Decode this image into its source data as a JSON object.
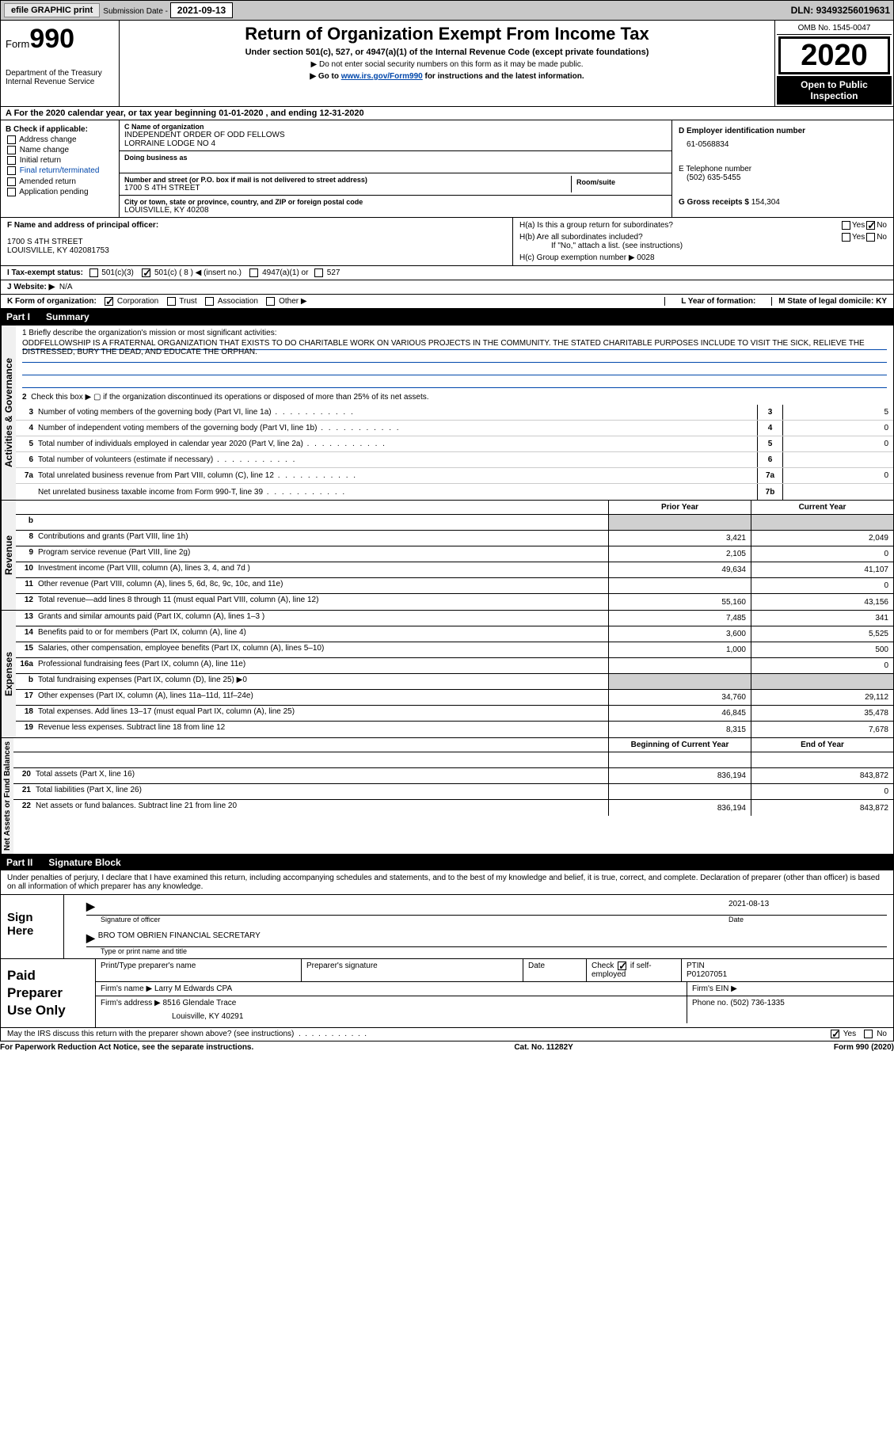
{
  "topbar": {
    "efile": "efile GRAPHIC print",
    "sub_label": "Submission Date - ",
    "sub_date": "2021-09-13",
    "dln_label": "DLN: ",
    "dln": "93493256019631"
  },
  "header": {
    "form_prefix": "Form",
    "form_num": "990",
    "dept": "Department of the Treasury",
    "irs": "Internal Revenue Service",
    "title": "Return of Organization Exempt From Income Tax",
    "subtitle": "Under section 501(c), 527, or 4947(a)(1) of the Internal Revenue Code (except private foundations)",
    "note1": "▶ Do not enter social security numbers on this form as it may be made public.",
    "note2_a": "▶ Go to ",
    "note2_link": "www.irs.gov/Form990",
    "note2_b": " for instructions and the latest information.",
    "omb": "OMB No. 1545-0047",
    "year": "2020",
    "open": "Open to Public Inspection"
  },
  "row_a": "A For the 2020 calendar year, or tax year beginning 01-01-2020    , and ending 12-31-2020",
  "col_b": {
    "header": "B Check if applicable:",
    "items": [
      "Address change",
      "Name change",
      "Initial return",
      "Final return/terminated",
      "Amended return",
      "Application pending"
    ]
  },
  "col_c": {
    "name_label": "C Name of organization",
    "name1": "INDEPENDENT ORDER OF ODD FELLOWS",
    "name2": "LORRAINE LODGE NO 4",
    "dba_label": "Doing business as",
    "dba": "",
    "addr_label": "Number and street (or P.O. box if mail is not delivered to street address)",
    "addr": "1700 S 4TH STREET",
    "room_label": "Room/suite",
    "city_label": "City or town, state or province, country, and ZIP or foreign postal code",
    "city": "LOUISVILLE, KY  40208"
  },
  "col_d": {
    "d_label": "D Employer identification number",
    "ein": "61-0568834",
    "e_label": "E Telephone number",
    "phone": "(502) 635-5455",
    "g_label": "G Gross receipts $ ",
    "g_val": "154,304"
  },
  "fh": {
    "f_label": "F Name and address of principal officer:",
    "f_addr1": "1700 S 4TH STREET",
    "f_addr2": "LOUISVILLE, KY  402081753",
    "ha": "H(a)  Is this a group return for subordinates?",
    "hb": "H(b)  Are all subordinates included?",
    "hb_note": "If \"No,\" attach a list. (see instructions)",
    "hc": "H(c)  Group exemption number ▶   0028",
    "yes": "Yes",
    "no": "No"
  },
  "status": {
    "i": "I  Tax-exempt status:",
    "c3": "501(c)(3)",
    "c_other": "501(c) ( 8 ) ◀ (insert no.)",
    "a1": "4947(a)(1) or",
    "s527": "527",
    "j": "J  Website: ▶",
    "j_val": "N/A"
  },
  "k_row": {
    "k": "K Form of organization:",
    "corp": "Corporation",
    "trust": "Trust",
    "assoc": "Association",
    "other": "Other ▶",
    "l": "L Year of formation:",
    "m": "M State of legal domicile: KY"
  },
  "part1": {
    "header_num": "Part I",
    "header_txt": "Summary",
    "q1": "1 Briefly describe the organization's mission or most significant activities:",
    "mission": "ODDFELLOWSHIP IS A FRATERNAL ORGANIZATION THAT EXISTS TO DO CHARITABLE WORK ON VARIOUS PROJECTS IN THE COMMUNITY. THE STATED CHARITABLE PURPOSES INCLUDE TO VISIT THE SICK, RELIEVE THE DISTRESSED, BURY THE DEAD, AND EDUCATE THE ORPHAN.",
    "q2": "Check this box ▶ ▢  if the organization discontinued its operations or disposed of more than 25% of its net assets.",
    "gov_label": "Activities & Governance",
    "lines": [
      {
        "n": "3",
        "t": "Number of voting members of the governing body (Part VI, line 1a)",
        "box": "3",
        "v": "5"
      },
      {
        "n": "4",
        "t": "Number of independent voting members of the governing body (Part VI, line 1b)",
        "box": "4",
        "v": "0"
      },
      {
        "n": "5",
        "t": "Total number of individuals employed in calendar year 2020 (Part V, line 2a)",
        "box": "5",
        "v": "0"
      },
      {
        "n": "6",
        "t": "Total number of volunteers (estimate if necessary)",
        "box": "6",
        "v": ""
      },
      {
        "n": "7a",
        "t": "Total unrelated business revenue from Part VIII, column (C), line 12",
        "box": "7a",
        "v": "0"
      },
      {
        "n": "",
        "t": "Net unrelated business taxable income from Form 990-T, line 39",
        "box": "7b",
        "v": ""
      }
    ],
    "col_prior": "Prior Year",
    "col_current": "Current Year",
    "rev_label": "Revenue",
    "revenue": [
      {
        "n": "b",
        "t": "",
        "c1": "",
        "c2": "",
        "shade": true
      },
      {
        "n": "8",
        "t": "Contributions and grants (Part VIII, line 1h)",
        "c1": "3,421",
        "c2": "2,049"
      },
      {
        "n": "9",
        "t": "Program service revenue (Part VIII, line 2g)",
        "c1": "2,105",
        "c2": "0"
      },
      {
        "n": "10",
        "t": "Investment income (Part VIII, column (A), lines 3, 4, and 7d )",
        "c1": "49,634",
        "c2": "41,107"
      },
      {
        "n": "11",
        "t": "Other revenue (Part VIII, column (A), lines 5, 6d, 8c, 9c, 10c, and 11e)",
        "c1": "",
        "c2": "0"
      },
      {
        "n": "12",
        "t": "Total revenue—add lines 8 through 11 (must equal Part VIII, column (A), line 12)",
        "c1": "55,160",
        "c2": "43,156"
      }
    ],
    "exp_label": "Expenses",
    "expenses": [
      {
        "n": "13",
        "t": "Grants and similar amounts paid (Part IX, column (A), lines 1–3 )",
        "c1": "7,485",
        "c2": "341"
      },
      {
        "n": "14",
        "t": "Benefits paid to or for members (Part IX, column (A), line 4)",
        "c1": "3,600",
        "c2": "5,525"
      },
      {
        "n": "15",
        "t": "Salaries, other compensation, employee benefits (Part IX, column (A), lines 5–10)",
        "c1": "1,000",
        "c2": "500"
      },
      {
        "n": "16a",
        "t": "Professional fundraising fees (Part IX, column (A), line 11e)",
        "c1": "",
        "c2": "0"
      },
      {
        "n": "b",
        "t": "Total fundraising expenses (Part IX, column (D), line 25) ▶0",
        "c1": "",
        "c2": "",
        "shade": true
      },
      {
        "n": "17",
        "t": "Other expenses (Part IX, column (A), lines 11a–11d, 11f–24e)",
        "c1": "34,760",
        "c2": "29,112"
      },
      {
        "n": "18",
        "t": "Total expenses. Add lines 13–17 (must equal Part IX, column (A), line 25)",
        "c1": "46,845",
        "c2": "35,478"
      },
      {
        "n": "19",
        "t": "Revenue less expenses. Subtract line 18 from line 12",
        "c1": "8,315",
        "c2": "7,678"
      }
    ],
    "na_label": "Net Assets or Fund Balances",
    "col_begin": "Beginning of Current Year",
    "col_end": "End of Year",
    "netassets": [
      {
        "n": "",
        "t": "",
        "c1": "",
        "c2": ""
      },
      {
        "n": "20",
        "t": "Total assets (Part X, line 16)",
        "c1": "836,194",
        "c2": "843,872"
      },
      {
        "n": "21",
        "t": "Total liabilities (Part X, line 26)",
        "c1": "",
        "c2": "0"
      },
      {
        "n": "22",
        "t": "Net assets or fund balances. Subtract line 21 from line 20",
        "c1": "836,194",
        "c2": "843,872"
      }
    ]
  },
  "part2": {
    "header_num": "Part II",
    "header_txt": "Signature Block",
    "decl": "Under penalties of perjury, I declare that I have examined this return, including accompanying schedules and statements, and to the best of my knowledge and belief, it is true, correct, and complete. Declaration of preparer (other than officer) is based on all information of which preparer has any knowledge."
  },
  "sign": {
    "left": "Sign Here",
    "date": "2021-08-13",
    "sig_label": "Signature of officer",
    "date_label": "Date",
    "officer": "BRO TOM OBRIEN  FINANCIAL SECRETARY",
    "officer_label": "Type or print name and title"
  },
  "prep": {
    "left": "Paid Preparer Use Only",
    "h1": "Print/Type preparer's name",
    "h2": "Preparer's signature",
    "h3": "Date",
    "h4_a": "Check",
    "h4_b": "if self-employed",
    "h5": "PTIN",
    "ptin": "P01207051",
    "firm_label": "Firm's name     ▶",
    "firm": "Larry M Edwards CPA",
    "ein_label": "Firm's EIN ▶",
    "addr_label": "Firm's address ▶",
    "addr1": "8516 Glendale Trace",
    "addr2": "Louisville, KY  40291",
    "phone_label": "Phone no.",
    "phone": "(502) 736-1335"
  },
  "footer": {
    "discuss": "May the IRS discuss this return with the preparer shown above? (see instructions)",
    "yes": "Yes",
    "no": "No",
    "pra": "For Paperwork Reduction Act Notice, see the separate instructions.",
    "cat": "Cat. No. 11282Y",
    "form": "Form 990 (2020)"
  }
}
